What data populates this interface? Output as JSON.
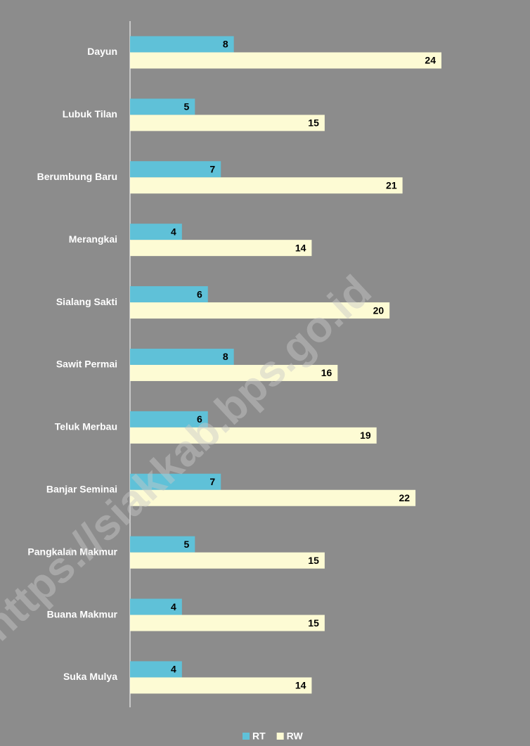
{
  "chart_data": {
    "type": "bar",
    "orientation": "horizontal",
    "categories": [
      "Dayun",
      "Lubuk Tilan",
      "Berumbung Baru",
      "Merangkai",
      "Sialang Sakti",
      "Sawit Permai",
      "Teluk Merbau",
      "Banjar Seminai",
      "Pangkalan Makmur",
      "Buana Makmur",
      "Suka Mulya"
    ],
    "series": [
      {
        "name": "RT",
        "color": "#5fc1d8",
        "values": [
          8,
          5,
          7,
          4,
          6,
          8,
          6,
          7,
          5,
          4,
          4
        ]
      },
      {
        "name": "RW",
        "color": "#fdfbd4",
        "values": [
          24,
          15,
          21,
          14,
          20,
          16,
          19,
          22,
          15,
          15,
          14
        ]
      }
    ],
    "xlim": [
      0,
      24
    ],
    "legend": "bottom",
    "watermark": "https://siakkab.bps.go.id"
  }
}
